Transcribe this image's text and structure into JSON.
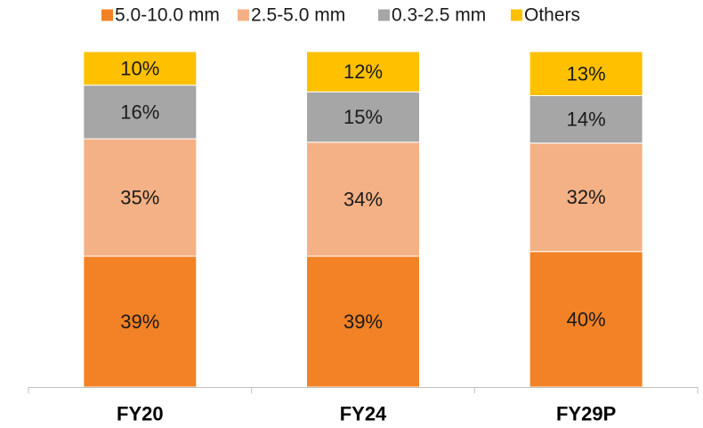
{
  "chart_data": {
    "type": "bar",
    "stacked": true,
    "percent_stacked": true,
    "categories": [
      "FY20",
      "FY24",
      "FY29P"
    ],
    "series": [
      {
        "name": "5.0-10.0 mm",
        "values": [
          39,
          39,
          40
        ],
        "color": "#f28225"
      },
      {
        "name": "2.5-5.0 mm",
        "values": [
          35,
          34,
          32
        ],
        "color": "#f4b185"
      },
      {
        "name": "0.3-2.5 mm",
        "values": [
          16,
          15,
          14
        ],
        "color": "#a6a6a6"
      },
      {
        "name": "Others",
        "values": [
          10,
          12,
          13
        ],
        "color": "#ffc000"
      }
    ],
    "value_suffix": "%",
    "ylim": [
      0,
      100
    ],
    "grid": false,
    "legend_position": "top"
  }
}
